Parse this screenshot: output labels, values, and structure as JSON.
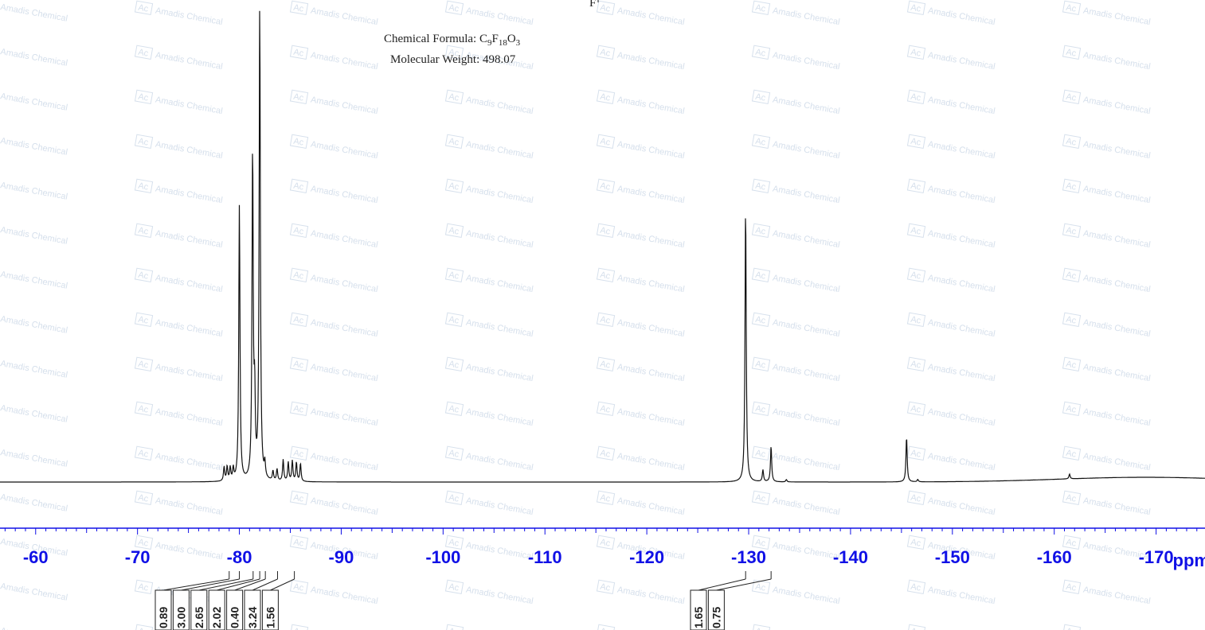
{
  "compound": {
    "formula_text": "Chemical Formula: C9F18O3",
    "mw_label": "Molecular Weight:",
    "mw_value": "498.07",
    "structure_fragment_label": "F"
  },
  "watermark": {
    "text": "Amadis Chemical",
    "logo_text": "Ac"
  },
  "colors": {
    "axis": "#1010e6",
    "spectrum": "#111111",
    "watermark": "#b4c6dc"
  },
  "chart_data": {
    "type": "line",
    "title": "",
    "xlabel": "ppm",
    "x_unit": "ppm",
    "xlim": [
      -56.5,
      -174.8
    ],
    "x_reversed": true,
    "x_tick_labels": [
      "-60",
      "-70",
      "-80",
      "-90",
      "-100",
      "-110",
      "-120",
      "-130",
      "-140",
      "-150",
      "-160",
      "-170"
    ],
    "x_ticks": [
      -60,
      -70,
      -80,
      -90,
      -100,
      -110,
      -120,
      -130,
      -140,
      -150,
      -160,
      -170
    ],
    "grid": false,
    "baseline_hump": {
      "center": -169.0,
      "width": 12,
      "height": 0.01
    },
    "peaks": [
      {
        "ppm": -78.5,
        "height": 0.03
      },
      {
        "ppm": -78.8,
        "height": 0.03
      },
      {
        "ppm": -79.1,
        "height": 0.027
      },
      {
        "ppm": -79.4,
        "height": 0.025
      },
      {
        "ppm": -80.0,
        "height": 0.58
      },
      {
        "ppm": -81.3,
        "height": 0.69
      },
      {
        "ppm": -81.5,
        "height": 0.16
      },
      {
        "ppm": -82.0,
        "height": 1.0
      },
      {
        "ppm": -82.5,
        "height": 0.03
      },
      {
        "ppm": -83.3,
        "height": 0.02
      },
      {
        "ppm": -83.7,
        "height": 0.025
      },
      {
        "ppm": -84.3,
        "height": 0.045
      },
      {
        "ppm": -84.8,
        "height": 0.04
      },
      {
        "ppm": -85.2,
        "height": 0.043
      },
      {
        "ppm": -85.6,
        "height": 0.04
      },
      {
        "ppm": -86.0,
        "height": 0.038
      },
      {
        "ppm": -129.7,
        "height": 0.58
      },
      {
        "ppm": -131.4,
        "height": 0.025
      },
      {
        "ppm": -132.2,
        "height": 0.075
      },
      {
        "ppm": -133.7,
        "height": 0.005
      },
      {
        "ppm": -145.5,
        "height": 0.095
      },
      {
        "ppm": -146.6,
        "height": 0.005
      },
      {
        "ppm": -161.5,
        "height": 0.01
      }
    ],
    "integrals": [
      {
        "label": "0.89",
        "from": -78.3,
        "to": -79.7
      },
      {
        "label": "3.00",
        "from": -79.8,
        "to": -80.2
      },
      {
        "label": "2.65",
        "from": -81.1,
        "to": -81.6
      },
      {
        "label": "2.02",
        "from": -81.8,
        "to": -82.2
      },
      {
        "label": "0.40",
        "from": -82.3,
        "to": -82.8
      },
      {
        "label": "3.24",
        "from": -83.0,
        "to": -84.5
      },
      {
        "label": "1.56",
        "from": -84.6,
        "to": -86.2
      },
      {
        "label": "1.65",
        "from": -129.4,
        "to": -130.0
      },
      {
        "label": "0.75",
        "from": -131.9,
        "to": -132.5
      }
    ]
  }
}
